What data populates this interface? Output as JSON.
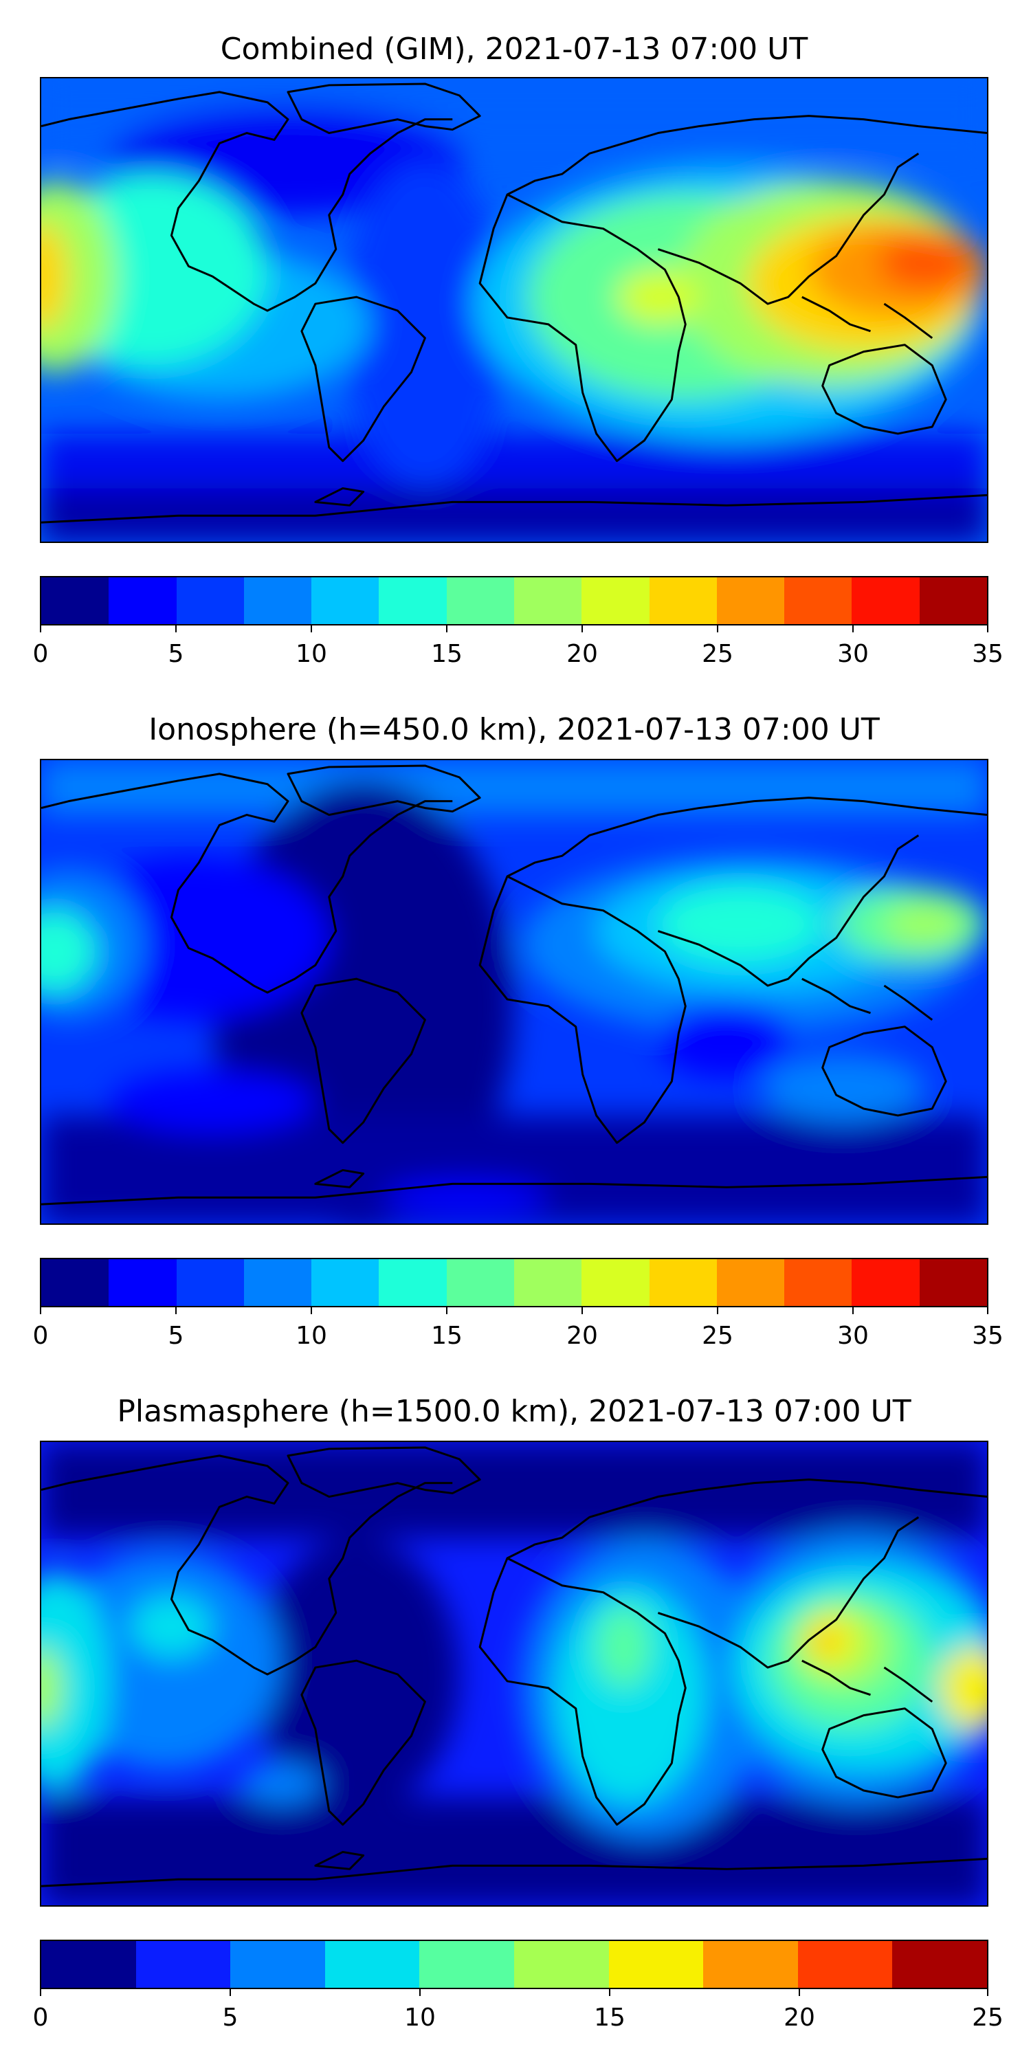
{
  "panels": [
    {
      "title": "Combined (GIM), 2021-07-13 07:00 UT",
      "colorbar": {
        "ticks": [
          "0",
          "5",
          "10",
          "15",
          "20",
          "25",
          "30",
          "35"
        ],
        "colors": [
          "#00008f",
          "#0000ff",
          "#0038ff",
          "#0080ff",
          "#00c4ff",
          "#1effd9",
          "#5cff9c",
          "#a0ff5e",
          "#d8ff22",
          "#ffd500",
          "#ff9500",
          "#ff5200",
          "#ff1200",
          "#a80000"
        ]
      }
    },
    {
      "title": "Ionosphere  (h=450.0 km), 2021-07-13 07:00 UT",
      "colorbar": {
        "ticks": [
          "0",
          "5",
          "10",
          "15",
          "20",
          "25",
          "30",
          "35"
        ],
        "colors": [
          "#00008f",
          "#0000ff",
          "#0038ff",
          "#0080ff",
          "#00c4ff",
          "#1effd9",
          "#5cff9c",
          "#a0ff5e",
          "#d8ff22",
          "#ffd500",
          "#ff9500",
          "#ff5200",
          "#ff1200",
          "#a80000"
        ]
      }
    },
    {
      "title": "Plasmasphere (h=1500.0 km), 2021-07-13 07:00 UT",
      "colorbar": {
        "ticks": [
          "0",
          "5",
          "10",
          "15",
          "20",
          "25"
        ],
        "colors": [
          "#00008f",
          "#0a1eff",
          "#0080ff",
          "#00e0ef",
          "#56ffa0",
          "#a6ff52",
          "#f8f000",
          "#ff9600",
          "#ff3c00",
          "#a80000"
        ]
      }
    }
  ]
}
